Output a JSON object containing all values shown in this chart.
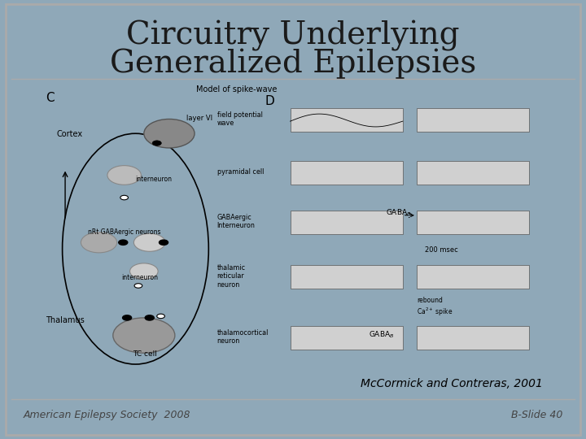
{
  "title_line1": "Circuitry Underlying",
  "title_line2": "Generalized Epilepsies",
  "title_fontsize": 28,
  "title_color": "#1a1a1a",
  "bg_outer": "#8fa8b8",
  "bg_title": "#f0f0f0",
  "bg_content": "#e8e8e8",
  "bg_footer": "#c8d4da",
  "footer_left": "American Epilepsy Society  2008",
  "footer_right": "B-Slide 40",
  "footer_fontsize": 9,
  "credit_text": "McCormick and Contreras, 2001",
  "credit_fontsize": 10,
  "border_color": "#999999",
  "slide_border_color": "#aaaaaa"
}
